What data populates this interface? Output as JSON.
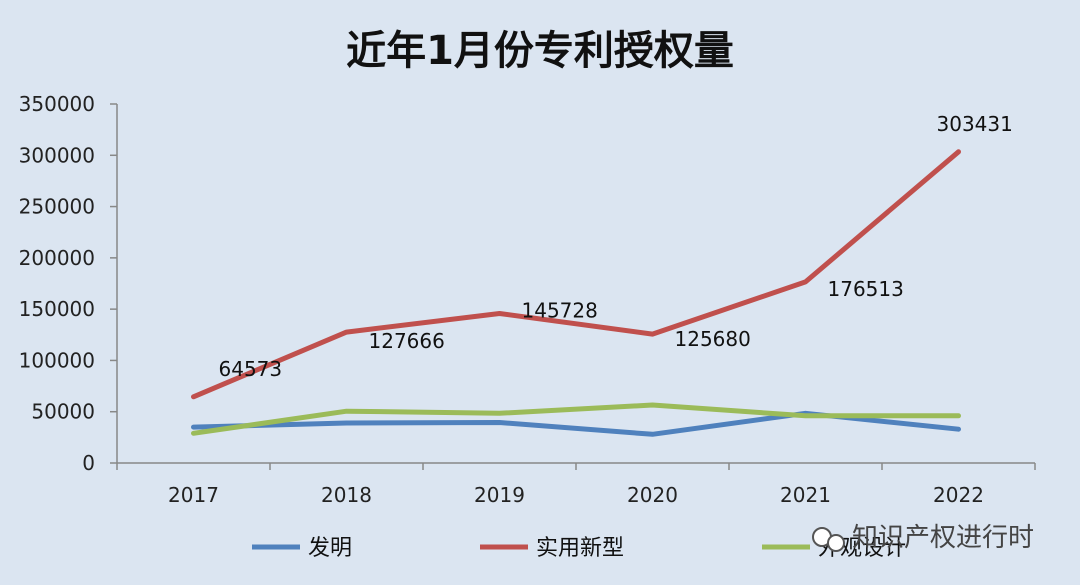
{
  "chart_data": {
    "type": "line",
    "title": "近年1月份专利授权量",
    "categories": [
      "2017",
      "2018",
      "2019",
      "2020",
      "2021",
      "2022"
    ],
    "ylim": [
      0,
      350000
    ],
    "yticks": [
      "0",
      "50000",
      "100000",
      "150000",
      "200000",
      "250000",
      "300000",
      "350000"
    ],
    "ytick_values": [
      0,
      50000,
      100000,
      150000,
      200000,
      250000,
      300000,
      350000
    ],
    "grid": false,
    "legend_position": "bottom",
    "series": [
      {
        "name": "发明",
        "color": "#4f81bd",
        "values": [
          35000,
          39000,
          39500,
          28000,
          48500,
          33000
        ],
        "labels": []
      },
      {
        "name": "实用新型",
        "color": "#c0504d",
        "values": [
          64573,
          127666,
          145728,
          125680,
          176513,
          303431
        ],
        "labels": [
          "64573",
          "127666",
          "145728",
          "125680",
          "176513",
          "303431"
        ]
      },
      {
        "name": "外观设计",
        "color": "#9bbb59",
        "values": [
          29000,
          50500,
          48500,
          56500,
          46000,
          46000
        ],
        "labels": []
      }
    ]
  },
  "watermark": {
    "text": "知识产权进行时",
    "icon": "wechat-icon"
  }
}
